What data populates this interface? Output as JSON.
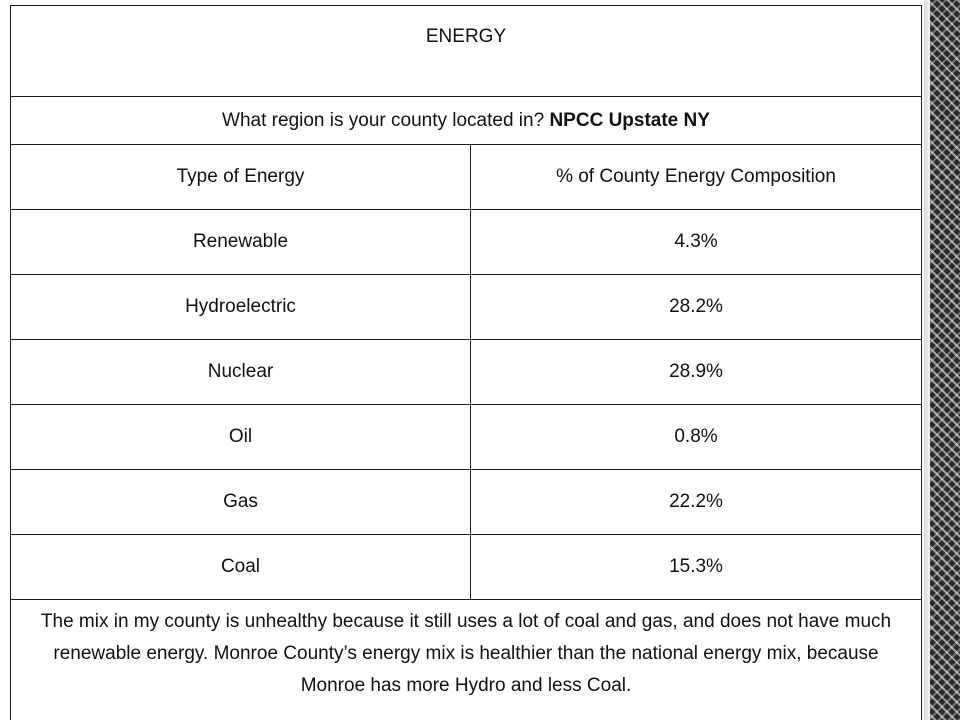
{
  "table": {
    "title": "ENERGY",
    "region_question": "What region is your county located in?",
    "region_answer": "NPCC Upstate NY",
    "header": {
      "type_label": "Type of Energy",
      "percent_label": "% of County Energy Composition"
    },
    "rows": [
      {
        "type": "Renewable",
        "percent": "4.3%"
      },
      {
        "type": "Hydroelectric",
        "percent": "28.2%"
      },
      {
        "type": "Nuclear",
        "percent": "28.9%"
      },
      {
        "type": "Oil",
        "percent": "0.8%"
      },
      {
        "type": "Gas",
        "percent": "22.2%"
      },
      {
        "type": "Coal",
        "percent": "15.3%"
      }
    ],
    "conclusion": "The mix in my county is unhealthy because it still uses a lot of coal and gas, and does not have much renewable energy.  Monroe County’s energy mix is healthier than the national energy mix, because Monroe has more Hydro and less Coal."
  }
}
